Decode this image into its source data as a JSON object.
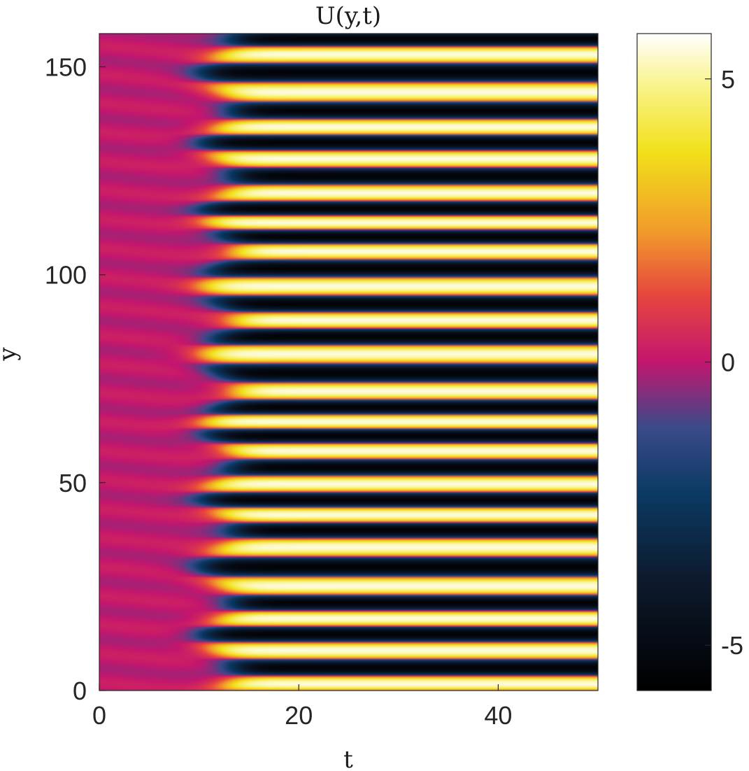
{
  "chart_data": {
    "type": "heatmap",
    "title": "U(y,t)",
    "xlabel": "t",
    "ylabel": "y",
    "xlim": [
      0,
      50
    ],
    "ylim": [
      0,
      158
    ],
    "xticks": [
      0,
      20,
      40
    ],
    "yticks": [
      0,
      50,
      100,
      150
    ],
    "colorbar": {
      "ticks": [
        -5,
        0,
        5
      ],
      "tick_labels": [
        "-5",
        "0",
        "5"
      ],
      "range": [
        -5.8,
        5.8
      ],
      "colormap": "magenta-centered diverging (black-blue-magenta-orange-yellow-white)"
    },
    "description_values": {
      "onset_t": 12,
      "band_amplitude": 5.5,
      "approx_band_count": 20
    }
  }
}
